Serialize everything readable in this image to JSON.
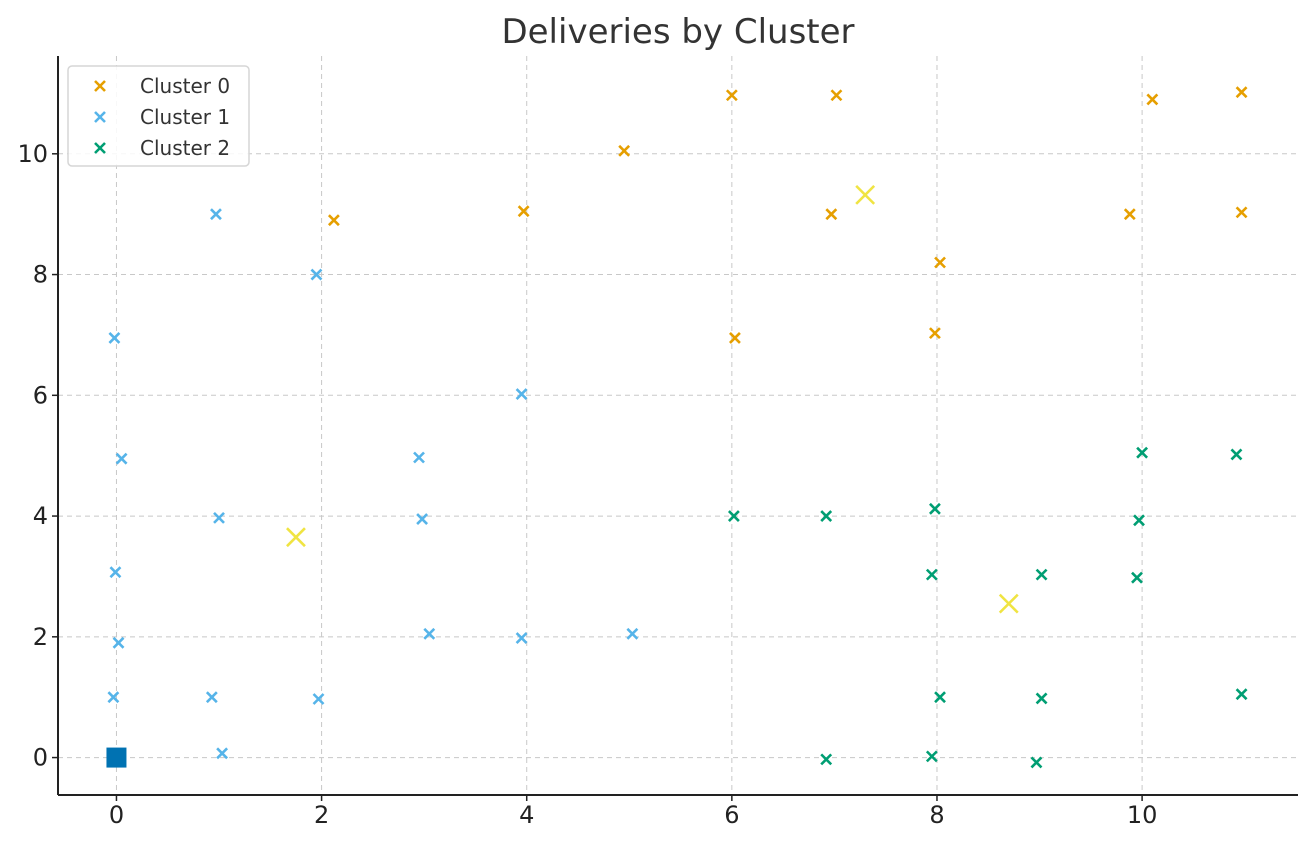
{
  "chart_data": {
    "type": "scatter",
    "title": "Deliveries by Cluster",
    "xlabel": "",
    "ylabel": "",
    "xlim": [
      -0.57,
      11.52
    ],
    "ylim": [
      -0.62,
      11.62
    ],
    "x_ticks": [
      0,
      2,
      4,
      6,
      8,
      10
    ],
    "y_ticks": [
      0,
      2,
      4,
      6,
      8,
      10
    ],
    "grid": true,
    "legend_position": "top-left",
    "marker": "x",
    "series": [
      {
        "name": "Cluster 0",
        "color": "#E69F00",
        "points": [
          [
            2.12,
            8.9
          ],
          [
            3.97,
            9.05
          ],
          [
            4.95,
            10.05
          ],
          [
            6.0,
            10.97
          ],
          [
            7.02,
            10.97
          ],
          [
            6.97,
            9.0
          ],
          [
            6.03,
            6.95
          ],
          [
            8.03,
            8.2
          ],
          [
            7.98,
            7.03
          ],
          [
            9.88,
            9.0
          ],
          [
            10.1,
            10.9
          ],
          [
            10.97,
            9.03
          ],
          [
            10.97,
            11.02
          ]
        ]
      },
      {
        "name": "Cluster 1",
        "color": "#56B4E9",
        "points": [
          [
            0.97,
            9.0
          ],
          [
            1.95,
            8.0
          ],
          [
            -0.02,
            6.95
          ],
          [
            0.05,
            4.95
          ],
          [
            3.95,
            6.02
          ],
          [
            2.95,
            4.97
          ],
          [
            2.98,
            3.95
          ],
          [
            1.0,
            3.97
          ],
          [
            -0.01,
            3.07
          ],
          [
            0.02,
            1.9
          ],
          [
            3.05,
            2.05
          ],
          [
            3.95,
            1.98
          ],
          [
            5.03,
            2.05
          ],
          [
            -0.03,
            1.0
          ],
          [
            0.93,
            1.0
          ],
          [
            1.97,
            0.97
          ],
          [
            1.03,
            0.07
          ]
        ]
      },
      {
        "name": "Cluster 2",
        "color": "#009E73",
        "points": [
          [
            6.02,
            4.0
          ],
          [
            6.92,
            4.0
          ],
          [
            7.98,
            4.12
          ],
          [
            10.0,
            5.05
          ],
          [
            10.92,
            5.02
          ],
          [
            9.97,
            3.93
          ],
          [
            7.95,
            3.03
          ],
          [
            9.02,
            3.03
          ],
          [
            9.95,
            2.98
          ],
          [
            8.03,
            1.0
          ],
          [
            9.02,
            0.98
          ],
          [
            10.97,
            1.05
          ],
          [
            6.92,
            -0.03
          ],
          [
            7.95,
            0.02
          ],
          [
            8.97,
            -0.08
          ]
        ]
      }
    ],
    "centroids": {
      "color": "#F0E442",
      "marker": "X",
      "points": [
        [
          7.3,
          9.32
        ],
        [
          1.75,
          3.65
        ],
        [
          8.7,
          2.55
        ]
      ]
    },
    "depot": {
      "color": "#0072B2",
      "marker": "square",
      "point": [
        0,
        0
      ]
    }
  }
}
